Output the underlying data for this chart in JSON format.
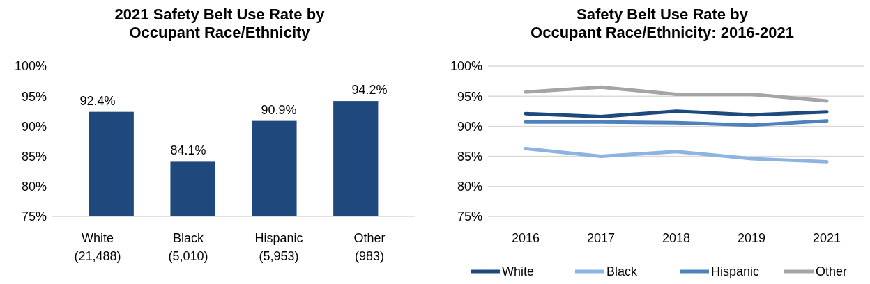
{
  "chart_data": [
    {
      "type": "bar",
      "title": "2021 Safety Belt Use Rate by\nOccupant Race/Ethnicity",
      "categories": [
        "White\n(21,488)",
        "Black\n(5,010)",
        "Hispanic\n(5,953)",
        "Other\n(983)"
      ],
      "values": [
        92.4,
        84.1,
        90.9,
        94.2
      ],
      "color": "#1f497d",
      "ylim": [
        75,
        100
      ],
      "yticks": [
        {
          "value": 75,
          "label": "75%"
        },
        {
          "value": 80,
          "label": "80%"
        },
        {
          "value": 85,
          "label": "85%"
        },
        {
          "value": 90,
          "label": "90%"
        },
        {
          "value": 95,
          "label": "95%"
        },
        {
          "value": 100,
          "label": "100%"
        }
      ],
      "value_labels": [
        "92.4%",
        "84.1%",
        "90.9%",
        "94.2%"
      ],
      "grid": false,
      "legend": false
    },
    {
      "type": "line",
      "title": "Safety Belt Use Rate by\nOccupant Race/Ethnicity:  2016-2021",
      "categories": [
        "2016",
        "2017",
        "2018",
        "2019",
        "2021"
      ],
      "series": [
        {
          "name": "White",
          "color": "#1f497d",
          "values": [
            92.1,
            91.6,
            92.5,
            91.9,
            92.4
          ]
        },
        {
          "name": "Black",
          "color": "#8db3e2",
          "values": [
            86.3,
            85.0,
            85.8,
            84.6,
            84.1
          ]
        },
        {
          "name": "Hispanic",
          "color": "#4f81bd",
          "values": [
            90.7,
            90.7,
            90.6,
            90.2,
            90.9
          ]
        },
        {
          "name": "Other",
          "color": "#a5a5a5",
          "values": [
            95.7,
            96.5,
            95.3,
            95.3,
            94.2
          ]
        }
      ],
      "ylim": [
        75,
        100
      ],
      "yticks": [
        {
          "value": 75,
          "label": "75%"
        },
        {
          "value": 80,
          "label": "80%"
        },
        {
          "value": 85,
          "label": "85%"
        },
        {
          "value": 90,
          "label": "90%"
        },
        {
          "value": 95,
          "label": "95%"
        },
        {
          "value": 100,
          "label": "100%"
        }
      ],
      "grid": true,
      "legend": "bottom",
      "marker": "none",
      "line_style": "solid"
    }
  ]
}
